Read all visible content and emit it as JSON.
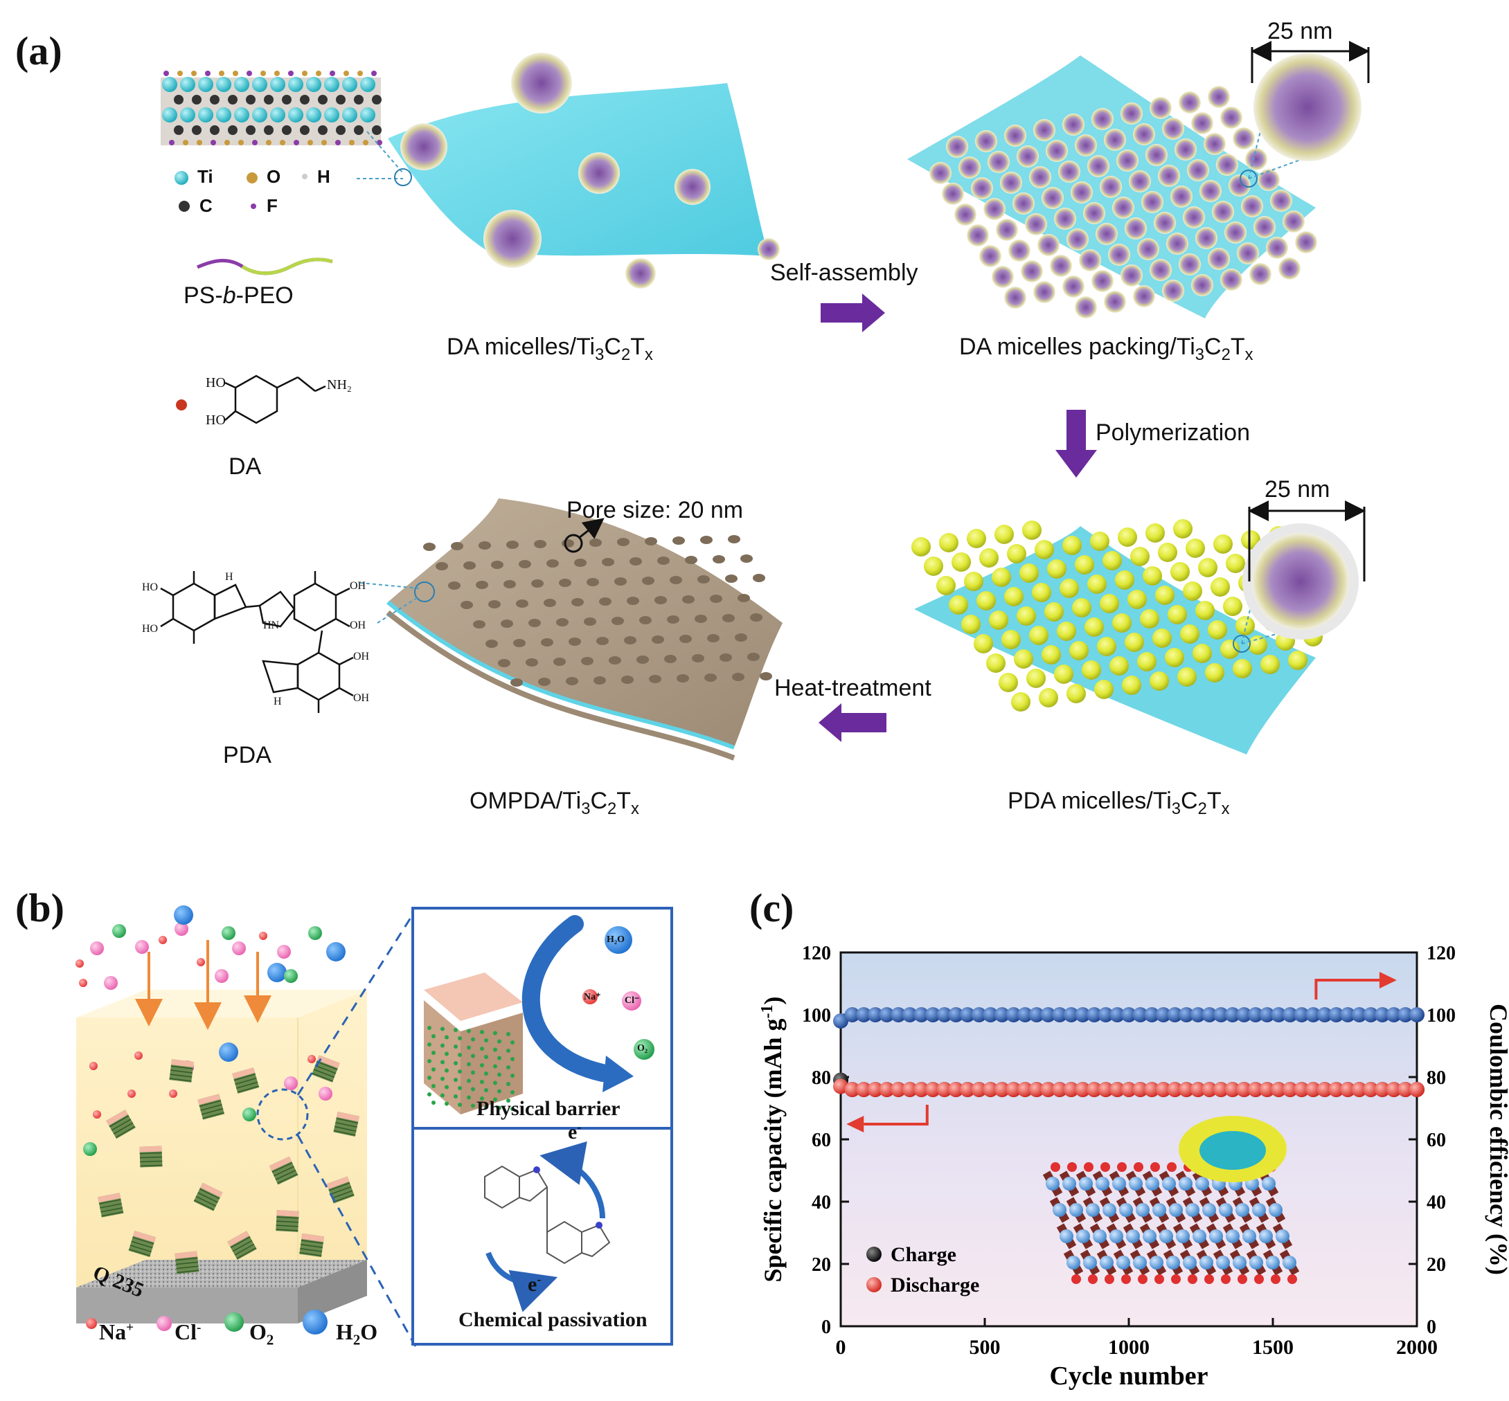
{
  "panel_a": {
    "label": "(a)",
    "legend": {
      "ti": "Ti",
      "o": "O",
      "h": "H",
      "c": "C",
      "f": "F",
      "colors": {
        "ti": "#2dc6d4",
        "o": "#c99a3c",
        "h": "#dddddd",
        "c": "#333333",
        "f": "#8a3ca8"
      }
    },
    "polymer": "PS-b-PEO",
    "polymer_parts": [
      "PS-",
      "b",
      "-PEO"
    ],
    "monomer": "DA",
    "monomer_groups": {
      "ho1": "HO",
      "ho2": "HO",
      "nh2": "NH₂"
    },
    "polymer_product": "PDA",
    "pda_groups": {
      "oh": "OH",
      "ho": "HO",
      "h": "H",
      "hn": "HN"
    },
    "step1_caption": "DA micelles/Ti₃C₂Tₓ",
    "step1_parts": [
      "DA micelles/Ti",
      "3",
      "C",
      "2",
      "T",
      "x"
    ],
    "arrow1_label": "Self-assembly",
    "step2_caption_parts": [
      "DA micelles packing/Ti",
      "3",
      "C",
      "2",
      "T",
      "x"
    ],
    "scale1": "25 nm",
    "arrow2_label": "Polymerization",
    "scale2": "25 nm",
    "pore_label": "Pore size: 20 nm",
    "arrow3_label": "Heat-treatment",
    "step3_caption_parts": [
      "PDA micelles/Ti",
      "3",
      "C",
      "2",
      "T",
      "x"
    ],
    "step4_caption_parts": [
      "OMPDA/Ti",
      "3",
      "C",
      "2",
      "T",
      "x"
    ],
    "colors": {
      "arrow": "#6a2b9c",
      "sheet": "#5fd8ea",
      "micelle": "#9a7ab8",
      "pda_sphere": "#e3ec3a",
      "ompda": "#a89682"
    }
  },
  "panel_b": {
    "label": "(b)",
    "substrate": "Q 235",
    "legend": {
      "na": "Na",
      "na_sup": "+",
      "cl": "Cl",
      "cl_sup": "-",
      "o2": "O",
      "o2_sub": "2",
      "h2o": "H₂O",
      "h2o_parts": [
        "H",
        "2",
        "O"
      ]
    },
    "barrier_label": "Physical barrier",
    "passivation_label": "Chemical passivation",
    "electron": "e",
    "electron_sup": "-",
    "inset_species": {
      "h2o": "H₂O",
      "na": "Na⁺",
      "cl": "Cl⁻",
      "o2": "O₂"
    },
    "colors": {
      "na": "#f04a4a",
      "cl": "#f07ec0",
      "o2": "#2fae5a",
      "h2o": "#1d7fd8",
      "frame": "#2e62b8"
    }
  },
  "panel_c": {
    "label": "(c)"
  },
  "chart_data": {
    "type": "scatter",
    "xlabel": "Cycle number",
    "ylabel": "Specific capacity (mAh g⁻¹)",
    "ylabel_parts": [
      "Specific capacity (mAh g",
      "-1",
      ")"
    ],
    "y2label": "Coulombic efficiency (%)",
    "xlim": [
      0,
      2000
    ],
    "ylim": [
      0,
      120
    ],
    "y2lim": [
      0,
      120
    ],
    "x_ticks": [
      0,
      500,
      1000,
      1500,
      2000
    ],
    "y_ticks": [
      0,
      20,
      40,
      60,
      80,
      100,
      120
    ],
    "y2_ticks": [
      0,
      20,
      40,
      60,
      80,
      100,
      120
    ],
    "legend_position": "bottom-left",
    "series": [
      {
        "name": "Charge",
        "axis": "left",
        "color": "#111111",
        "first": 79,
        "value": 76
      },
      {
        "name": "Discharge",
        "axis": "left",
        "color": "#e8312a",
        "first": 77,
        "value": 76
      },
      {
        "axis": "right",
        "color": "#1f55a8",
        "first": 98,
        "value": 100
      }
    ],
    "x_step": 40
  }
}
